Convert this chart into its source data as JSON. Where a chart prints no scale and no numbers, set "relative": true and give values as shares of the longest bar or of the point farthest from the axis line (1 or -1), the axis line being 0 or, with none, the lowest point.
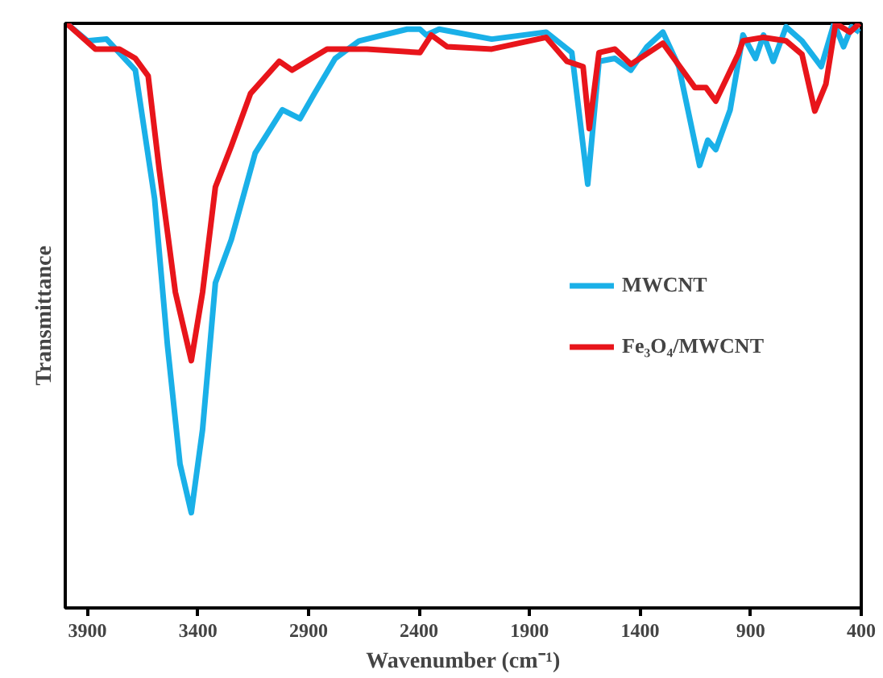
{
  "chart_data": {
    "type": "line",
    "xlabel": "Wavenumber (cm⁻¹)",
    "ylabel": "Transmittance",
    "relative": true,
    "xlim": [
      4000,
      400
    ],
    "xticks": [
      3900,
      3400,
      2900,
      2400,
      1900,
      1400,
      900,
      400
    ],
    "grid": false,
    "legend": "right",
    "marker": "none",
    "line_style": "solid",
    "series": [
      {
        "name": "MWCNT",
        "color": "#1ab0e8",
        "x": [
          3994,
          3900,
          3813,
          3683,
          3596,
          3538,
          3481,
          3430,
          3379,
          3321,
          3249,
          3141,
          3018,
          2938,
          2873,
          2779,
          2671,
          2454,
          2396,
          2367,
          2309,
          2071,
          1825,
          1709,
          1637,
          1586,
          1514,
          1442,
          1369,
          1297,
          1225,
          1131,
          1094,
          1058,
          993,
          935,
          878,
          842,
          798,
          740,
          668,
          581,
          523,
          480,
          444,
          408
        ],
        "values": [
          1.0,
          0.97,
          0.973,
          0.92,
          0.7,
          0.45,
          0.246,
          0.163,
          0.305,
          0.556,
          0.63,
          0.778,
          0.852,
          0.837,
          0.88,
          0.94,
          0.97,
          0.99,
          0.99,
          0.98,
          0.99,
          0.973,
          0.985,
          0.95,
          0.725,
          0.935,
          0.94,
          0.92,
          0.96,
          0.985,
          0.926,
          0.757,
          0.8,
          0.784,
          0.852,
          0.98,
          0.94,
          0.98,
          0.935,
          0.994,
          0.97,
          0.926,
          1.0,
          0.96,
          0.994,
          0.985
        ]
      },
      {
        "name": "Fe₃O₄/MWCNT",
        "color": "#e8151b",
        "x": [
          3994,
          3864,
          3755,
          3683,
          3625,
          3575,
          3502,
          3430,
          3379,
          3321,
          3249,
          3162,
          3032,
          2974,
          2816,
          2635,
          2396,
          2345,
          2273,
          2071,
          1825,
          1731,
          1658,
          1630,
          1586,
          1514,
          1442,
          1297,
          1203,
          1152,
          1102,
          1058,
          957,
          935,
          842,
          740,
          668,
          610,
          560,
          516,
          451,
          408
        ],
        "values": [
          1.0,
          0.956,
          0.956,
          0.94,
          0.91,
          0.75,
          0.54,
          0.423,
          0.54,
          0.72,
          0.79,
          0.88,
          0.935,
          0.92,
          0.956,
          0.956,
          0.95,
          0.98,
          0.96,
          0.956,
          0.976,
          0.935,
          0.926,
          0.82,
          0.95,
          0.956,
          0.93,
          0.966,
          0.917,
          0.89,
          0.89,
          0.867,
          0.947,
          0.97,
          0.976,
          0.97,
          0.947,
          0.85,
          0.896,
          1.0,
          0.985,
          1.0
        ]
      }
    ]
  }
}
